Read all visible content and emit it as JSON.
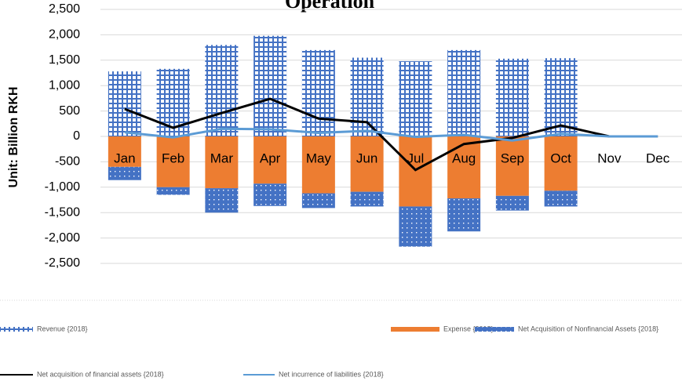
{
  "chart_data": {
    "type": "bar",
    "title": "Operation",
    "y_label": "Unit: Billion RKH",
    "categories": [
      "Jan",
      "Feb",
      "Mar",
      "Apr",
      "May",
      "Jun",
      "Jul",
      "Aug",
      "Sep",
      "Oct",
      "Nov",
      "Dec"
    ],
    "series": [
      {
        "name": "Revenue {2018}",
        "color": "#4472c4",
        "kind": "bar",
        "values": [
          1280,
          1330,
          1800,
          1980,
          1700,
          1550,
          1480,
          1700,
          1530,
          1540,
          0,
          0
        ]
      },
      {
        "name": "Expense {2018}",
        "color": "#ed7d31",
        "kind": "bar",
        "values": [
          -600,
          -1000,
          -1020,
          -930,
          -1120,
          -1090,
          -1380,
          -1220,
          -1170,
          -1070,
          0,
          0
        ]
      },
      {
        "name": "Net Acquisition of Nonfinancial Assets {2018}",
        "color": "#4472c4",
        "kind": "bar",
        "values": [
          -260,
          -150,
          -480,
          -440,
          -290,
          -290,
          -790,
          -650,
          -290,
          -310,
          0,
          0
        ]
      },
      {
        "name": "Net acquisition of financial assets {2018}",
        "color": "#000000",
        "kind": "line",
        "values": [
          540,
          170,
          460,
          740,
          350,
          280,
          -660,
          -150,
          -30,
          215,
          0,
          0
        ]
      },
      {
        "name": "Net incurrence of liabilities {2018}",
        "color": "#5b9bd5",
        "kind": "line",
        "values": [
          80,
          -20,
          150,
          140,
          70,
          110,
          -10,
          30,
          -80,
          50,
          0,
          0
        ]
      }
    ],
    "ylim": [
      -2500,
      2500
    ],
    "yticks": [
      {
        "value": 2500,
        "label": "2,500"
      },
      {
        "value": 2000,
        "label": "2,000"
      },
      {
        "value": 1500,
        "label": "1,500"
      },
      {
        "value": 1000,
        "label": "1,000"
      },
      500,
      0,
      -500,
      {
        "value": -1000,
        "label": "-1,000"
      },
      {
        "value": -1500,
        "label": "-1,500"
      },
      {
        "value": -2000,
        "label": "-2,000"
      },
      {
        "value": -2500,
        "label": "-2,500"
      }
    ],
    "grid": true,
    "legend": "bottom"
  }
}
